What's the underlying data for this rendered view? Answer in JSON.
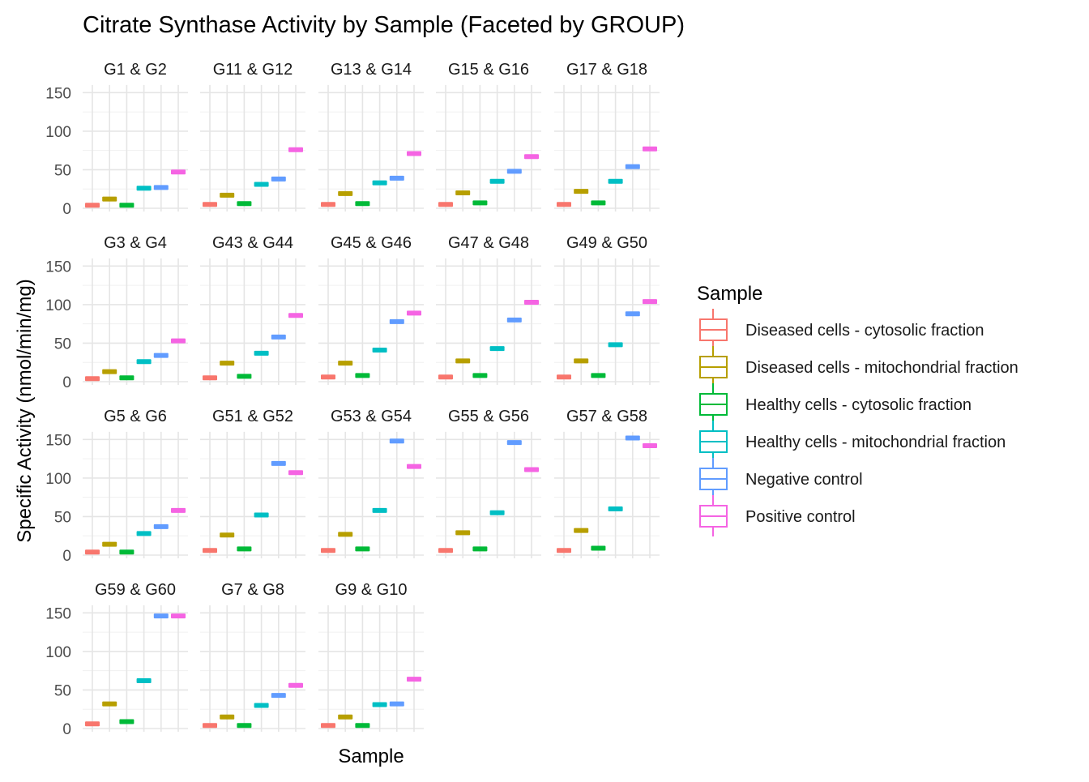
{
  "chart_data": {
    "type": "box",
    "title": "Citrate Synthase Activity by Sample (Faceted by GROUP)",
    "xlabel": "Sample",
    "ylabel": "Specific Activity (nmol/min/mg)",
    "ylim": [
      0,
      160
    ],
    "yticks": [
      0,
      50,
      100,
      150
    ],
    "grid": true,
    "legend": {
      "title": "Sample",
      "position": "right"
    },
    "categories": [
      "Diseased cells - cytosolic fraction",
      "Diseased cells - mitochondrial fraction",
      "Healthy cells - cytosolic fraction",
      "Healthy cells - mitochondrial fraction",
      "Negative control",
      "Positive control"
    ],
    "colors": [
      "#F8766D",
      "#B79F00",
      "#00BA38",
      "#00BFC4",
      "#619CFF",
      "#F564E3"
    ],
    "facets": [
      {
        "group": "G1 & G2",
        "values": [
          4,
          12,
          4,
          26,
          27,
          47
        ]
      },
      {
        "group": "G11 & G12",
        "values": [
          5,
          17,
          6,
          31,
          38,
          76
        ]
      },
      {
        "group": "G13 & G14",
        "values": [
          5,
          19,
          6,
          33,
          39,
          71
        ]
      },
      {
        "group": "G15 & G16",
        "values": [
          5,
          20,
          7,
          35,
          48,
          67
        ]
      },
      {
        "group": "G17 & G18",
        "values": [
          5,
          22,
          7,
          35,
          54,
          77
        ]
      },
      {
        "group": "G3 & G4",
        "values": [
          4,
          13,
          5,
          26,
          34,
          53
        ]
      },
      {
        "group": "G43 & G44",
        "values": [
          5,
          24,
          7,
          37,
          58,
          86
        ]
      },
      {
        "group": "G45 & G46",
        "values": [
          6,
          24,
          8,
          41,
          78,
          89
        ]
      },
      {
        "group": "G47 & G48",
        "values": [
          6,
          27,
          8,
          43,
          80,
          103
        ]
      },
      {
        "group": "G49 & G50",
        "values": [
          6,
          27,
          8,
          48,
          88,
          104
        ]
      },
      {
        "group": "G5 & G6",
        "values": [
          4,
          14,
          4,
          28,
          37,
          58
        ]
      },
      {
        "group": "G51 & G52",
        "values": [
          6,
          26,
          8,
          52,
          119,
          107
        ]
      },
      {
        "group": "G53 & G54",
        "values": [
          6,
          27,
          8,
          58,
          148,
          115
        ]
      },
      {
        "group": "G55 & G56",
        "values": [
          6,
          29,
          8,
          55,
          146,
          111
        ]
      },
      {
        "group": "G57 & G58",
        "values": [
          6,
          32,
          9,
          60,
          152,
          142
        ]
      },
      {
        "group": "G59 & G60",
        "values": [
          6,
          32,
          9,
          62,
          146,
          146
        ]
      },
      {
        "group": "G7 & G8",
        "values": [
          4,
          15,
          4,
          30,
          43,
          56
        ]
      },
      {
        "group": "G9 & G10",
        "values": [
          4,
          15,
          4,
          31,
          32,
          64
        ]
      }
    ]
  }
}
